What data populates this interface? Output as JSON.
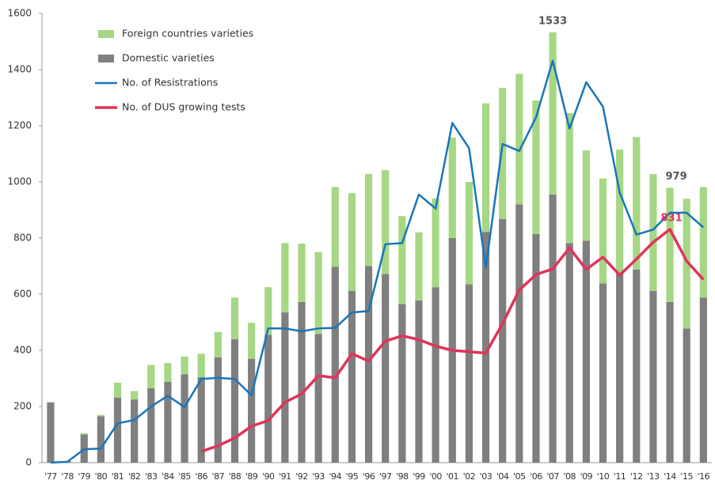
{
  "chart_data": {
    "type": "bar_line",
    "categories": [
      "'77",
      "'78",
      "'79",
      "'80",
      "'81",
      "'82",
      "'83",
      "'84",
      "'85",
      "'86",
      "'87",
      "'88",
      "'89",
      "'90",
      "'91",
      "'92",
      "'93",
      "'94",
      "'95",
      "'96",
      "'97",
      "'98",
      "'99",
      "'00",
      "'01",
      "'02",
      "'03",
      "'04",
      "'05",
      "'06",
      "'07",
      "'08",
      "'09",
      "'10",
      "'11",
      "'12",
      "'13",
      "'14",
      "'15",
      "'16"
    ],
    "series": [
      {
        "name": "Foreign countries varieties",
        "kind": "bar",
        "color": "#a6d785",
        "values": [
          0,
          0,
          5,
          5,
          53,
          30,
          83,
          67,
          63,
          83,
          90,
          148,
          128,
          170,
          247,
          208,
          292,
          284,
          348,
          328,
          370,
          313,
          242,
          317,
          358,
          365,
          458,
          467,
          465,
          475,
          578,
          463,
          322,
          374,
          440,
          472,
          416,
          407,
          462,
          394
        ]
      },
      {
        "name": "Domestic varieties",
        "kind": "bar",
        "color": "#7f7f7f",
        "values": [
          215,
          5,
          100,
          165,
          232,
          225,
          265,
          288,
          315,
          305,
          375,
          440,
          370,
          455,
          535,
          572,
          458,
          698,
          612,
          700,
          672,
          565,
          578,
          625,
          800,
          635,
          822,
          868,
          920,
          815,
          955,
          782,
          790,
          638,
          675,
          688,
          612,
          572,
          478,
          588
        ]
      },
      {
        "name": "No. of Resistrations",
        "kind": "line",
        "color": "#1a75bb",
        "values": [
          0,
          3,
          48,
          50,
          140,
          152,
          200,
          238,
          198,
          298,
          302,
          298,
          240,
          478,
          478,
          468,
          478,
          480,
          535,
          540,
          778,
          782,
          955,
          905,
          1210,
          1120,
          695,
          1135,
          1110,
          1230,
          1432,
          1190,
          1355,
          1268,
          962,
          812,
          830,
          890,
          890,
          838
        ]
      },
      {
        "name": "No. of DUS growing tests",
        "kind": "line",
        "color": "#e0345a",
        "values": [
          null,
          null,
          null,
          null,
          null,
          null,
          null,
          null,
          null,
          40,
          60,
          88,
          130,
          150,
          215,
          245,
          310,
          302,
          388,
          362,
          433,
          452,
          438,
          415,
          400,
          395,
          390,
          495,
          615,
          670,
          690,
          765,
          688,
          732,
          668,
          725,
          785,
          831,
          718,
          652
        ]
      }
    ],
    "annotations": [
      {
        "label": "1533",
        "value": 1533,
        "category": "'07",
        "color": "#555555"
      },
      {
        "label": "979",
        "value": 979,
        "category": "'14",
        "color": "#555555"
      },
      {
        "label": "831",
        "value": 831,
        "category": "'14",
        "color": "#e0345a"
      }
    ],
    "ylim": [
      0,
      1600
    ],
    "yticks": [
      0,
      200,
      400,
      600,
      800,
      1000,
      1200,
      1400,
      1600
    ]
  }
}
